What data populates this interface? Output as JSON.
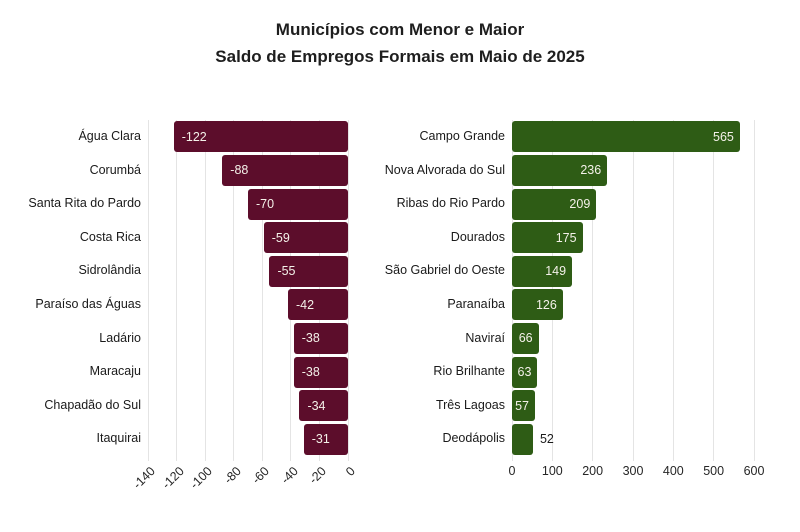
{
  "title": {
    "line1": "Municípios com Menor e Maior",
    "line2": "Saldo de Empregos Formais em Maio de 2025"
  },
  "colors": {
    "negative_bar": "#5c0d2b",
    "positive_bar": "#2e5c15",
    "gridline": "#e4e4e4",
    "value_label_inside": "#f4f1e9",
    "value_label_outside": "#1a1a1a",
    "category_label": "#1a1a1a",
    "tick_label": "#262626",
    "title_text": "#1e1e1e",
    "background": "#ffffff"
  },
  "chart_data": [
    {
      "type": "bar",
      "orientation": "horizontal",
      "name": "menor-saldo",
      "categories": [
        "Água Clara",
        "Corumbá",
        "Santa Rita do Pardo",
        "Costa Rica",
        "Sidrolândia",
        "Paraíso das Águas",
        "Ladário",
        "Maracaju",
        "Chapadão do Sul",
        "Itaquirai"
      ],
      "values": [
        -122,
        -88,
        -70,
        -59,
        -55,
        -42,
        -38,
        -38,
        -34,
        -31
      ],
      "xlim": [
        -140,
        0
      ],
      "xticks": [
        -140,
        -120,
        -100,
        -80,
        -60,
        -40,
        -20,
        0
      ],
      "bar_color": "#5c0d2b",
      "bar_anchor": "right",
      "grid": true,
      "tick_rotation": 45,
      "value_labels": "inside-start"
    },
    {
      "type": "bar",
      "orientation": "horizontal",
      "name": "maior-saldo",
      "categories": [
        "Campo Grande",
        "Nova Alvorada do Sul",
        "Ribas do Rio Pardo",
        "Dourados",
        "São Gabriel do Oeste",
        "Paranaíba",
        "Naviraí",
        "Rio Brilhante",
        "Três Lagoas",
        "Deodápolis"
      ],
      "values": [
        565,
        236,
        209,
        175,
        149,
        126,
        66,
        63,
        57,
        52
      ],
      "xlim": [
        0,
        600
      ],
      "xticks": [
        0,
        100,
        200,
        300,
        400,
        500,
        600
      ],
      "bar_color": "#2e5c15",
      "bar_anchor": "left",
      "grid": true,
      "tick_rotation": 0,
      "value_labels": "inside-end"
    }
  ]
}
